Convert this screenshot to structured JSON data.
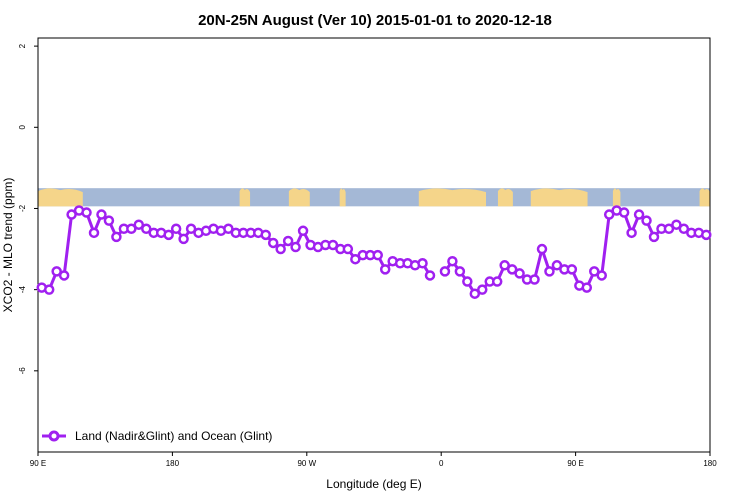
{
  "chart_data": {
    "type": "line",
    "title": "20N-25N August (Ver 10)   2015-01-01 to 2020-12-18",
    "xlabel": "Longitude (deg E)",
    "ylabel": "XCO2 - MLO trend (ppm)",
    "xlim": [
      90,
      450
    ],
    "ylim": [
      -8,
      2.2
    ],
    "x_ticks": [
      {
        "value": 90,
        "label": "90 E"
      },
      {
        "value": 180,
        "label": "180"
      },
      {
        "value": 270,
        "label": "90 W"
      },
      {
        "value": 360,
        "label": "0"
      },
      {
        "value": 450,
        "label": "90 E"
      },
      {
        "value": 540,
        "label": "180"
      }
    ],
    "y_ticks": [
      {
        "value": 2,
        "label": "2"
      },
      {
        "value": 0,
        "label": "0"
      },
      {
        "value": -2,
        "label": "-2"
      },
      {
        "value": -4,
        "label": "-4"
      },
      {
        "value": -6,
        "label": "-6"
      }
    ],
    "x_domain": [
      90,
      540
    ],
    "series_color": "#a020f0",
    "map_ocean_color": "#a4b8d6",
    "map_land_color": "#f5d58a",
    "map_lat_band": [
      -1.5,
      -1.75
    ],
    "series": [
      {
        "name": "Land (Nadir&Glint) and Ocean (Glint)",
        "segments": [
          {
            "x": [
              92.5,
              97.5,
              102.5,
              107.5,
              112.5,
              117.5,
              122.5,
              127.5,
              132.5,
              137.5,
              142.5,
              147.5,
              152.5,
              157.5,
              162.5,
              167.5,
              172.5,
              177.5,
              182.5,
              187.5,
              192.5,
              197.5,
              202.5,
              207.5,
              212.5,
              217.5,
              222.5,
              227.5,
              232.5,
              237.5,
              242.5,
              247.5,
              252.5,
              257.5,
              262.5,
              267.5,
              272.5,
              277.5,
              282.5,
              287.5,
              292.5,
              297.5,
              302.5,
              307.5,
              312.5,
              317.5,
              322.5,
              327.5,
              332.5,
              337.5,
              342.5,
              347.5,
              352.5,
              357.5
            ],
            "y": [
              -3.95,
              -4.0,
              -3.55,
              -3.65,
              -2.15,
              -2.05,
              -2.1,
              -2.6,
              -2.15,
              -2.3,
              -2.7,
              -2.5,
              -2.5,
              -2.4,
              -2.5,
              -2.6,
              -2.6,
              -2.65,
              -2.5,
              -2.75,
              -2.5,
              -2.6,
              -2.55,
              -2.5,
              -2.55,
              -2.5,
              -2.6,
              -2.6,
              -2.6,
              -2.6,
              -2.65,
              -2.85,
              -3.0,
              -2.8,
              -2.95,
              -2.55,
              -2.9,
              -2.95,
              -2.9,
              -2.9,
              -3.0,
              -3.0,
              -3.25,
              -3.15,
              -3.15,
              -3.15,
              -3.5,
              -3.3,
              -3.35,
              -3.35,
              -3.4,
              -3.35,
              -3.65,
              null
            ]
          },
          {
            "x": [
              362.5,
              367.5,
              372.5,
              377.5,
              382.5,
              387.5,
              392.5,
              397.5,
              402.5,
              407.5,
              412.5,
              417.5,
              422.5,
              427.5,
              432.5,
              437.5,
              442.5,
              447.5,
              452.5,
              457.5,
              462.5,
              467.5,
              472.5,
              477.5,
              482.5,
              487.5,
              492.5,
              497.5,
              502.5,
              507.5,
              512.5,
              517.5,
              522.5,
              527.5,
              532.5,
              537.5
            ],
            "y": [
              -3.55,
              -3.3,
              -3.55,
              -3.8,
              -4.1,
              -4.0,
              -3.8,
              -3.8,
              -3.4,
              -3.5,
              -3.6,
              -3.75,
              -3.75,
              -3.0,
              -3.55,
              -3.4,
              -3.5,
              -3.5,
              -3.9,
              -3.95,
              -3.55,
              -3.65,
              -2.15,
              -2.05,
              -2.1,
              -2.6,
              -2.15,
              -2.3,
              -2.7,
              -2.5,
              -2.5,
              -2.4,
              -2.5,
              -2.6,
              -2.6,
              -2.65
            ]
          }
        ]
      }
    ],
    "legend": {
      "position": "bottom-left",
      "label": "Land (Nadir&Glint) and Ocean (Glint)"
    }
  }
}
